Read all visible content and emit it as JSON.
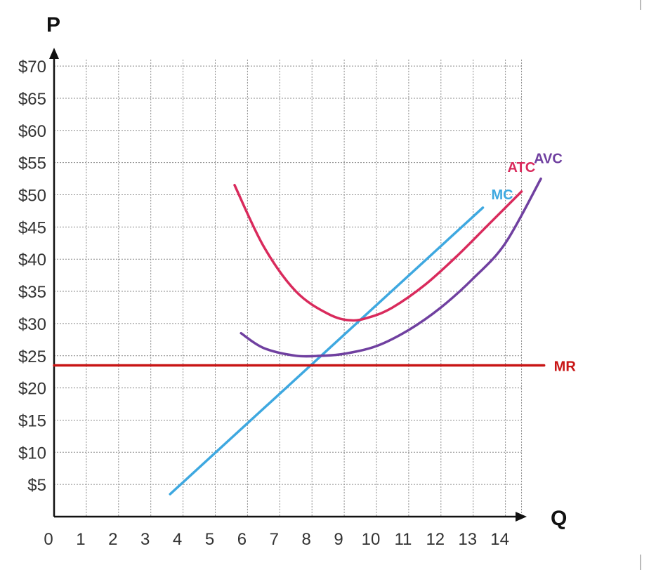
{
  "chart_data": {
    "type": "line",
    "title": "",
    "xlabel": "Q",
    "ylabel": "P",
    "xlim": [
      0,
      14
    ],
    "ylim": [
      0,
      70
    ],
    "grid": true,
    "x_ticks": [
      "0",
      "1",
      "2",
      "3",
      "4",
      "5",
      "6",
      "7",
      "8",
      "9",
      "10",
      "11",
      "12",
      "13",
      "14"
    ],
    "y_ticks": [
      "$5",
      "$10",
      "$15",
      "$20",
      "$25",
      "$30",
      "$35",
      "$40",
      "$45",
      "$50",
      "$55",
      "$60",
      "$65",
      "$70"
    ],
    "y_tick_values": [
      5,
      10,
      15,
      20,
      25,
      30,
      35,
      40,
      45,
      50,
      55,
      60,
      65,
      70
    ],
    "series": [
      {
        "name": "MC",
        "color": "#3ea8e0",
        "x": [
          3.6,
          13.3
        ],
        "y": [
          3.5,
          48
        ]
      },
      {
        "name": "ATC",
        "color": "#d92a5c",
        "x": [
          5.6,
          6.5,
          7.5,
          8.5,
          9.2,
          9.8,
          10.5,
          11.5,
          12.5,
          13.5,
          14.5
        ],
        "y": [
          51.5,
          42,
          35,
          31.5,
          30.5,
          31,
          32.5,
          36,
          40.5,
          45.5,
          50.5
        ]
      },
      {
        "name": "AVC",
        "color": "#7040a0",
        "x": [
          5.8,
          6.5,
          7.5,
          8.3,
          9,
          10,
          11,
          12,
          13,
          14,
          15.1
        ],
        "y": [
          28.5,
          26.2,
          25,
          25,
          25.3,
          26.5,
          29,
          32.5,
          37,
          42.5,
          52.5
        ]
      },
      {
        "name": "MR",
        "color": "#c81414",
        "x": [
          0,
          15.2
        ],
        "y": [
          23.5,
          23.5
        ]
      }
    ]
  }
}
